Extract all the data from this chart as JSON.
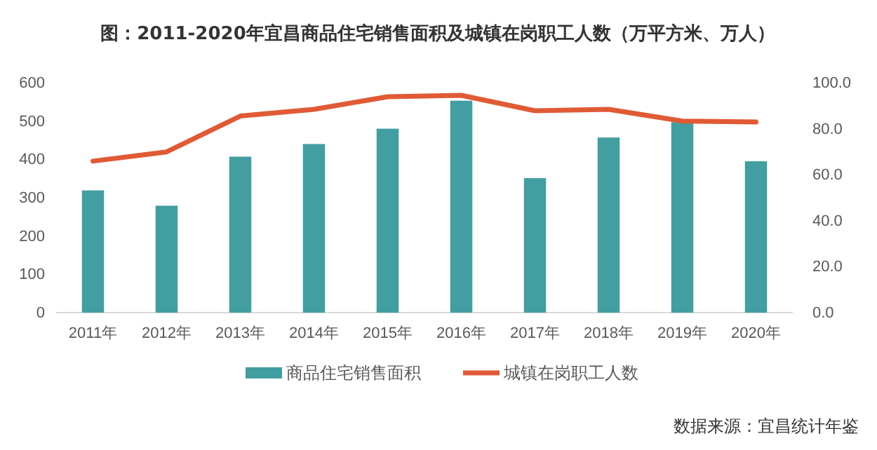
{
  "chart_data": {
    "type": "bar",
    "title": "图：2011-2020年宜昌商品住宅销售面积及城镇在岗职工人数（万平方米、万人）",
    "categories": [
      "2011年",
      "2012年",
      "2013年",
      "2014年",
      "2015年",
      "2016年",
      "2017年",
      "2018年",
      "2019年",
      "2020年"
    ],
    "series": [
      {
        "name": "商品住宅销售面积",
        "color": "#429ea0",
        "values": [
          319,
          279,
          407,
          440,
          480,
          553,
          351,
          457,
          497,
          395
        ]
      },
      {
        "name": "城镇在岗职工人数",
        "type": "line",
        "axis": "y2",
        "color": "#e05a35",
        "values": [
          65.9,
          69.9,
          85.5,
          88.4,
          93.9,
          94.5,
          87.8,
          88.4,
          83.3,
          82.9
        ]
      }
    ],
    "ylim": [
      0,
      600
    ],
    "yticks": [
      0,
      100,
      200,
      300,
      400,
      500,
      600
    ],
    "y2lim": [
      0,
      100
    ],
    "y2ticks": [
      {
        "value": 0,
        "label": "0.0"
      },
      {
        "value": 20,
        "label": "20.0"
      },
      {
        "value": 40,
        "label": "40.0"
      },
      {
        "value": 60,
        "label": "60.0"
      },
      {
        "value": 80,
        "label": "80.0"
      },
      {
        "value": 100,
        "label": "100.0"
      }
    ],
    "grid": false,
    "legend": "bottom",
    "marker": "none",
    "line_style": "solid",
    "annotations": [
      "数据来源：宜昌统计年鉴"
    ]
  }
}
